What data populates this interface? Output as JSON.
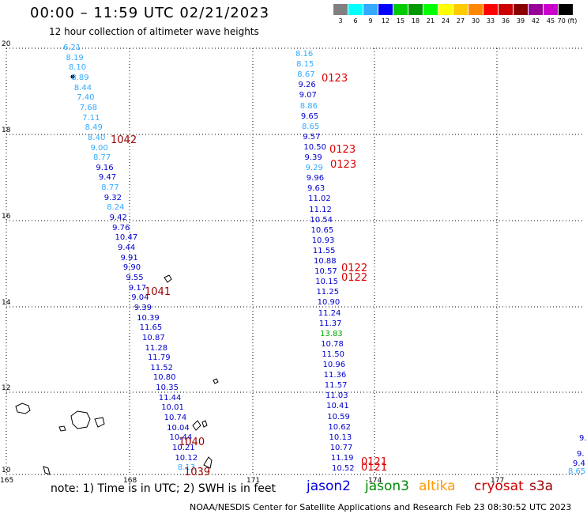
{
  "header": {
    "title": "00:00 – 11:59 UTC 02/21/2023",
    "subtitle": "12 hour collection of altimeter wave heights"
  },
  "color_scale": {
    "labels": [
      "3",
      "6",
      "9",
      "12",
      "15",
      "18",
      "21",
      "24",
      "27",
      "30",
      "33",
      "36",
      "39",
      "42",
      "45",
      "70 (ft)"
    ],
    "colors": [
      "#808080",
      "#00ffff",
      "#33aaff",
      "#0000ff",
      "#00cc00",
      "#009900",
      "#00ff00",
      "#ffff00",
      "#ffcc00",
      "#ff8800",
      "#ff0000",
      "#cc0000",
      "#880000",
      "#990099",
      "#cc00cc",
      "#000000"
    ]
  },
  "axes": {
    "x_ticks": [
      "165",
      "168",
      "171",
      "174",
      "177"
    ],
    "y_ticks": [
      "20",
      "18",
      "16",
      "14",
      "12",
      "10"
    ]
  },
  "track_a": [
    {
      "v": "6.21",
      "c": "#33aaff"
    },
    {
      "v": "8.19",
      "c": "#33aaff"
    },
    {
      "v": "8.10",
      "c": "#33aaff"
    },
    {
      "v": "8.89",
      "c": "#33aaff"
    },
    {
      "v": "8.44",
      "c": "#33aaff"
    },
    {
      "v": "7.40",
      "c": "#33aaff"
    },
    {
      "v": "7.68",
      "c": "#33aaff"
    },
    {
      "v": "7.11",
      "c": "#33aaff"
    },
    {
      "v": "8.49",
      "c": "#33aaff"
    },
    {
      "v": "8.40",
      "c": "#33aaff"
    },
    {
      "v": "9.00",
      "c": "#33aaff"
    },
    {
      "v": "8.77",
      "c": "#33aaff"
    },
    {
      "v": "9.16",
      "c": "#0000cc"
    },
    {
      "v": "9.47",
      "c": "#0000cc"
    },
    {
      "v": "8.77",
      "c": "#33aaff"
    },
    {
      "v": "9.32",
      "c": "#0000cc"
    },
    {
      "v": "8.24",
      "c": "#33aaff"
    },
    {
      "v": "9.42",
      "c": "#0000cc"
    },
    {
      "v": "9.76",
      "c": "#0000cc"
    },
    {
      "v": "10.47",
      "c": "#0000cc"
    },
    {
      "v": "9.44",
      "c": "#0000cc"
    },
    {
      "v": "9.91",
      "c": "#0000cc"
    },
    {
      "v": "9.90",
      "c": "#0000cc"
    },
    {
      "v": "9.55",
      "c": "#0000cc"
    },
    {
      "v": "9.17",
      "c": "#0000cc"
    },
    {
      "v": "9.04",
      "c": "#0000cc"
    },
    {
      "v": "9.39",
      "c": "#0000cc"
    },
    {
      "v": "10.39",
      "c": "#0000cc"
    },
    {
      "v": "11.65",
      "c": "#0000cc"
    },
    {
      "v": "10.87",
      "c": "#0000cc"
    },
    {
      "v": "11.28",
      "c": "#0000cc"
    },
    {
      "v": "11.79",
      "c": "#0000cc"
    },
    {
      "v": "11.52",
      "c": "#0000cc"
    },
    {
      "v": "10.80",
      "c": "#0000cc"
    },
    {
      "v": "10.35",
      "c": "#0000cc"
    },
    {
      "v": "11.44",
      "c": "#0000cc"
    },
    {
      "v": "10.01",
      "c": "#0000cc"
    },
    {
      "v": "10.74",
      "c": "#0000cc"
    },
    {
      "v": "10.04",
      "c": "#0000cc"
    },
    {
      "v": "10.44",
      "c": "#0000cc"
    },
    {
      "v": "10.21",
      "c": "#0000cc"
    },
    {
      "v": "10.12",
      "c": "#0000cc"
    },
    {
      "v": "8.13",
      "c": "#33aaff"
    }
  ],
  "track_b": [
    {
      "v": "8.16",
      "c": "#33aaff"
    },
    {
      "v": "8.15",
      "c": "#33aaff"
    },
    {
      "v": "8.67",
      "c": "#33aaff"
    },
    {
      "v": "9.26",
      "c": "#0000cc"
    },
    {
      "v": "9.07",
      "c": "#0000cc"
    },
    {
      "v": "8.86",
      "c": "#33aaff"
    },
    {
      "v": "9.65",
      "c": "#0000cc"
    },
    {
      "v": "8.65",
      "c": "#33aaff"
    },
    {
      "v": "9.57",
      "c": "#0000cc"
    },
    {
      "v": "10.50",
      "c": "#0000cc"
    },
    {
      "v": "9.39",
      "c": "#0000cc"
    },
    {
      "v": "9.29",
      "c": "#33aaff"
    },
    {
      "v": "9.96",
      "c": "#0000cc"
    },
    {
      "v": "9.63",
      "c": "#0000cc"
    },
    {
      "v": "11.02",
      "c": "#0000cc"
    },
    {
      "v": "11.12",
      "c": "#0000cc"
    },
    {
      "v": "10.54",
      "c": "#0000cc"
    },
    {
      "v": "10.65",
      "c": "#0000cc"
    },
    {
      "v": "10.93",
      "c": "#0000cc"
    },
    {
      "v": "11.55",
      "c": "#0000cc"
    },
    {
      "v": "10.88",
      "c": "#0000cc"
    },
    {
      "v": "10.57",
      "c": "#0000cc"
    },
    {
      "v": "10.15",
      "c": "#0000cc"
    },
    {
      "v": "11.25",
      "c": "#0000cc"
    },
    {
      "v": "10.90",
      "c": "#0000cc"
    },
    {
      "v": "11.24",
      "c": "#0000cc"
    },
    {
      "v": "11.37",
      "c": "#0000cc"
    },
    {
      "v": "13.83",
      "c": "#00aa00"
    },
    {
      "v": "10.78",
      "c": "#0000cc"
    },
    {
      "v": "11.50",
      "c": "#0000cc"
    },
    {
      "v": "10.96",
      "c": "#0000cc"
    },
    {
      "v": "11.36",
      "c": "#0000cc"
    },
    {
      "v": "11.57",
      "c": "#0000cc"
    },
    {
      "v": "11.03",
      "c": "#0000cc"
    },
    {
      "v": "10.41",
      "c": "#0000cc"
    },
    {
      "v": "10.59",
      "c": "#0000cc"
    },
    {
      "v": "10.62",
      "c": "#0000cc"
    },
    {
      "v": "10.13",
      "c": "#0000cc"
    },
    {
      "v": "10.77",
      "c": "#0000cc"
    },
    {
      "v": "11.19",
      "c": "#0000cc"
    },
    {
      "v": "10.52",
      "c": "#0000cc"
    }
  ],
  "track_c": [
    {
      "v": "9.",
      "c": "#0000cc"
    },
    {
      "v": "9.",
      "c": "#0000cc"
    },
    {
      "v": "9.4",
      "c": "#0000cc"
    },
    {
      "v": "8.65",
      "c": "#33aaff"
    }
  ],
  "revs": [
    {
      "id": "1042",
      "c": "#990000"
    },
    {
      "id": "1041",
      "c": "#990000"
    },
    {
      "id": "1040",
      "c": "#990000"
    },
    {
      "id": "1039",
      "c": "#990000"
    },
    {
      "id": "0123",
      "c": "#dd0000"
    },
    {
      "id": "0123",
      "c": "#dd0000"
    },
    {
      "id": "0123",
      "c": "#dd0000"
    },
    {
      "id": "0122",
      "c": "#dd0000"
    },
    {
      "id": "0122",
      "c": "#dd0000"
    },
    {
      "id": "0121",
      "c": "#dd0000"
    },
    {
      "id": "0121",
      "c": "#dd0000"
    }
  ],
  "footer": {
    "note": "note:  1) Time is in UTC;  2) SWH is in feet",
    "satellites": [
      {
        "name": "jason2",
        "color": "#0000dd"
      },
      {
        "name": "jason3",
        "color": "#008800"
      },
      {
        "name": "altika",
        "color": "#ff9900"
      },
      {
        "name": "cryosat",
        "color": "#cc0000"
      },
      {
        "name": "s3a",
        "color": "#990000"
      }
    ],
    "credit": "NOAA/NESDIS Center for Satellite Applications and Research    Feb 23 08:30:52 UTC 2023"
  }
}
